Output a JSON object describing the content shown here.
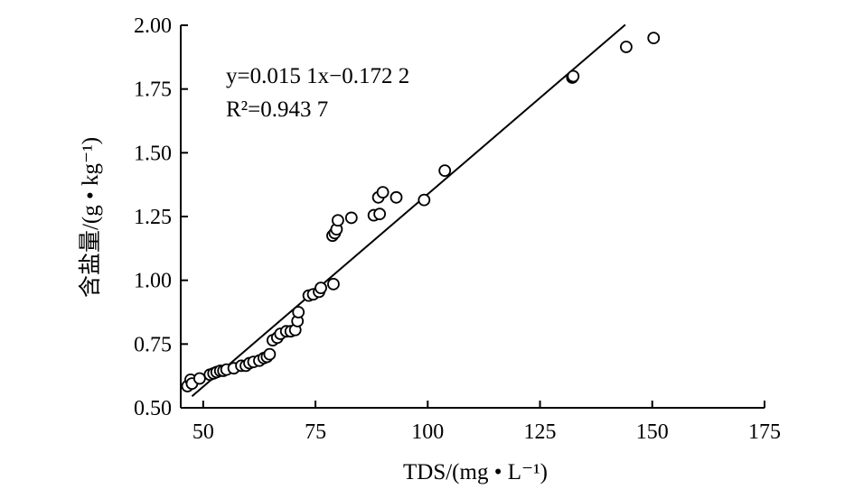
{
  "chart_data": {
    "type": "scatter",
    "xlabel": "TDS/(mg • L⁻¹)",
    "ylabel": "含盐量/(g • kg⁻¹)",
    "xlim": [
      45,
      175
    ],
    "ylim": [
      0.5,
      2.0
    ],
    "x_ticks": [
      "50",
      "75",
      "100",
      "125",
      "150",
      "175"
    ],
    "y_ticks": [
      "0.50",
      "0.75",
      "1.00",
      "1.25",
      "1.50",
      "1.75",
      "2.00"
    ],
    "equation": "y=0.015 1x−0.172 2",
    "r_squared": "R²=0.943 7",
    "fit": {
      "slope": 0.0151,
      "intercept": -0.1722,
      "x_range": [
        47.5,
        144
      ]
    },
    "marker_color": "#000000",
    "points": [
      [
        46.5,
        0.585
      ],
      [
        47.2,
        0.61
      ],
      [
        47.5,
        0.595
      ],
      [
        49.2,
        0.615
      ],
      [
        51.5,
        0.63
      ],
      [
        52.3,
        0.635
      ],
      [
        53.0,
        0.64
      ],
      [
        53.8,
        0.645
      ],
      [
        54.5,
        0.645
      ],
      [
        55.2,
        0.65
      ],
      [
        56.8,
        0.655
      ],
      [
        58.5,
        0.665
      ],
      [
        59.5,
        0.665
      ],
      [
        60.3,
        0.675
      ],
      [
        61.2,
        0.68
      ],
      [
        62.5,
        0.685
      ],
      [
        63.5,
        0.695
      ],
      [
        64.2,
        0.7
      ],
      [
        64.8,
        0.71
      ],
      [
        65.5,
        0.765
      ],
      [
        66.5,
        0.775
      ],
      [
        67.2,
        0.79
      ],
      [
        68.5,
        0.8
      ],
      [
        69.5,
        0.8
      ],
      [
        70.5,
        0.805
      ],
      [
        71.0,
        0.84
      ],
      [
        71.2,
        0.875
      ],
      [
        73.5,
        0.94
      ],
      [
        74.5,
        0.945
      ],
      [
        75.8,
        0.955
      ],
      [
        76.2,
        0.97
      ],
      [
        79.0,
        0.985
      ],
      [
        78.8,
        1.175
      ],
      [
        79.3,
        1.185
      ],
      [
        79.7,
        1.2
      ],
      [
        80.0,
        1.235
      ],
      [
        83.0,
        1.245
      ],
      [
        88.0,
        1.255
      ],
      [
        89.3,
        1.26
      ],
      [
        89.0,
        1.325
      ],
      [
        90.0,
        1.345
      ],
      [
        93.0,
        1.325
      ],
      [
        99.2,
        1.315
      ],
      [
        103.8,
        1.43
      ],
      [
        132.2,
        1.795
      ],
      [
        132.4,
        1.8
      ],
      [
        144.2,
        1.915
      ],
      [
        150.3,
        1.95
      ]
    ]
  }
}
